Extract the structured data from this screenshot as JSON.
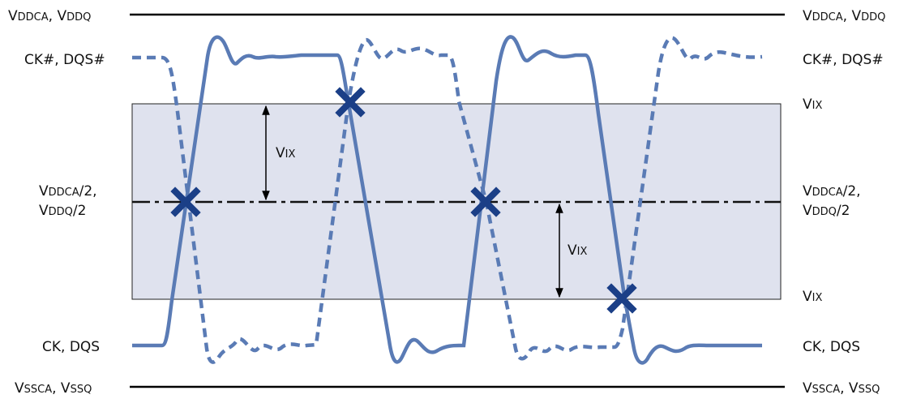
{
  "colors": {
    "signal": "#5a7bb5",
    "marker": "#1b3f87",
    "band_fill": "#dfe2ee",
    "rail": "#000000",
    "midline": "#111111"
  },
  "labels": {
    "vdd_top": {
      "prefix": "V",
      "sub": "DDCA",
      "mid": ", V",
      "sub2": "DDQ"
    },
    "ck_bar": "CK#, DQS#",
    "vix": {
      "prefix": "V",
      "sub": "IX"
    },
    "mid": {
      "prefix": "V",
      "sub": "DDCA",
      "suffix": "/2,",
      "line2_prefix": "V",
      "line2_sub": "DDQ",
      "line2_suffix": "/2"
    },
    "ck": "CK, DQS",
    "vss_bottom": {
      "prefix": "V",
      "sub": "SSCA",
      "mid": ", V",
      "sub2": "SSQ"
    }
  },
  "markers": {
    "count": 4,
    "shape": "x-cross"
  }
}
